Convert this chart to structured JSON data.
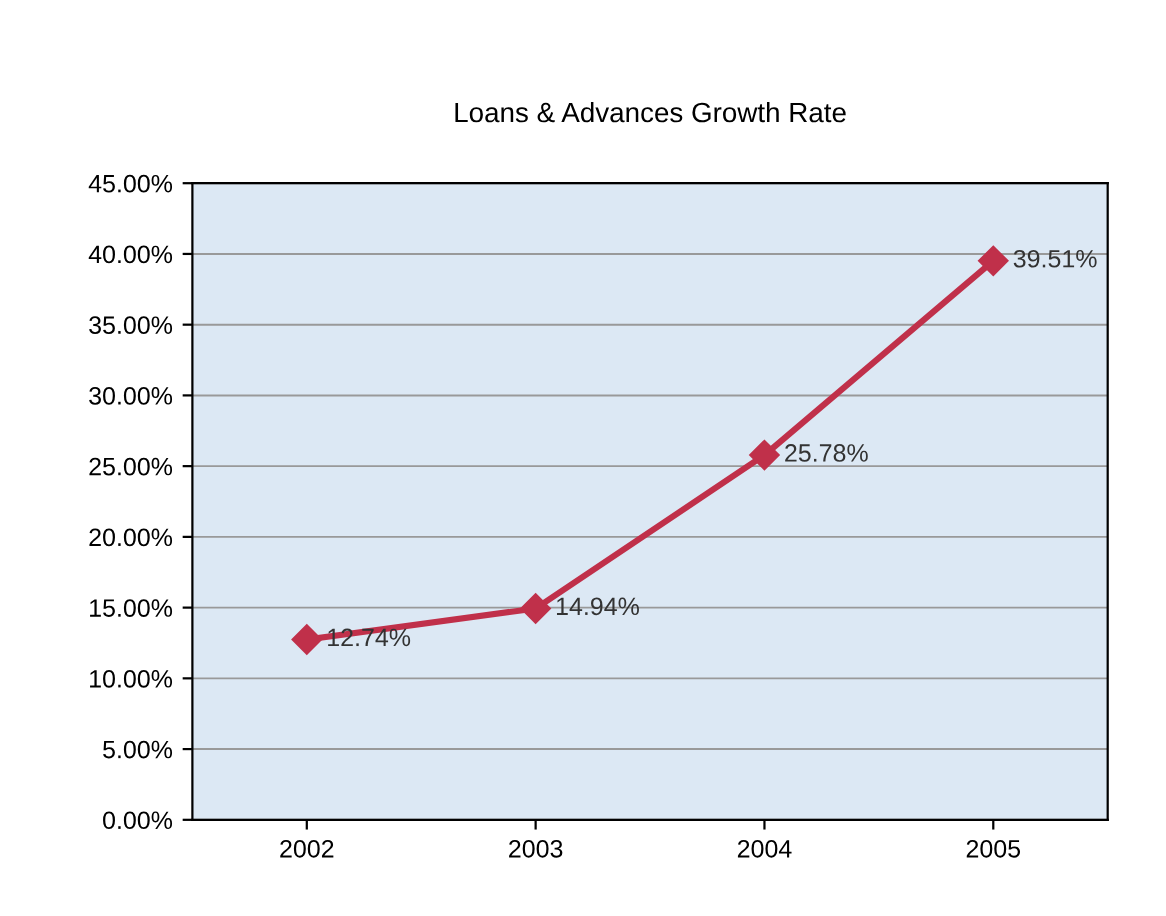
{
  "chart_data": {
    "type": "line",
    "title": "Loans & Advances Growth Rate",
    "categories": [
      "2002",
      "2003",
      "2004",
      "2005"
    ],
    "series": [
      {
        "color": "#c0304a",
        "values": [
          12.74,
          14.94,
          25.78,
          39.51
        ],
        "value_labels": [
          "12.74%",
          "14.94%",
          "25.78%",
          "39.51%"
        ]
      }
    ],
    "ylim": [
      0,
      45
    ],
    "yticks": [
      {
        "value": 0,
        "label": "0.00%"
      },
      {
        "value": 5,
        "label": "5.00%"
      },
      {
        "value": 10,
        "label": "10.00%"
      },
      {
        "value": 15,
        "label": "15.00%"
      },
      {
        "value": 20,
        "label": "20.00%"
      },
      {
        "value": 25,
        "label": "25.00%"
      },
      {
        "value": 30,
        "label": "30.00%"
      },
      {
        "value": 35,
        "label": "35.00%"
      },
      {
        "value": 40,
        "label": "40.00%"
      },
      {
        "value": 45,
        "label": "45.00%"
      }
    ],
    "grid": "y",
    "marker": "diamond",
    "line_style": "solid"
  }
}
